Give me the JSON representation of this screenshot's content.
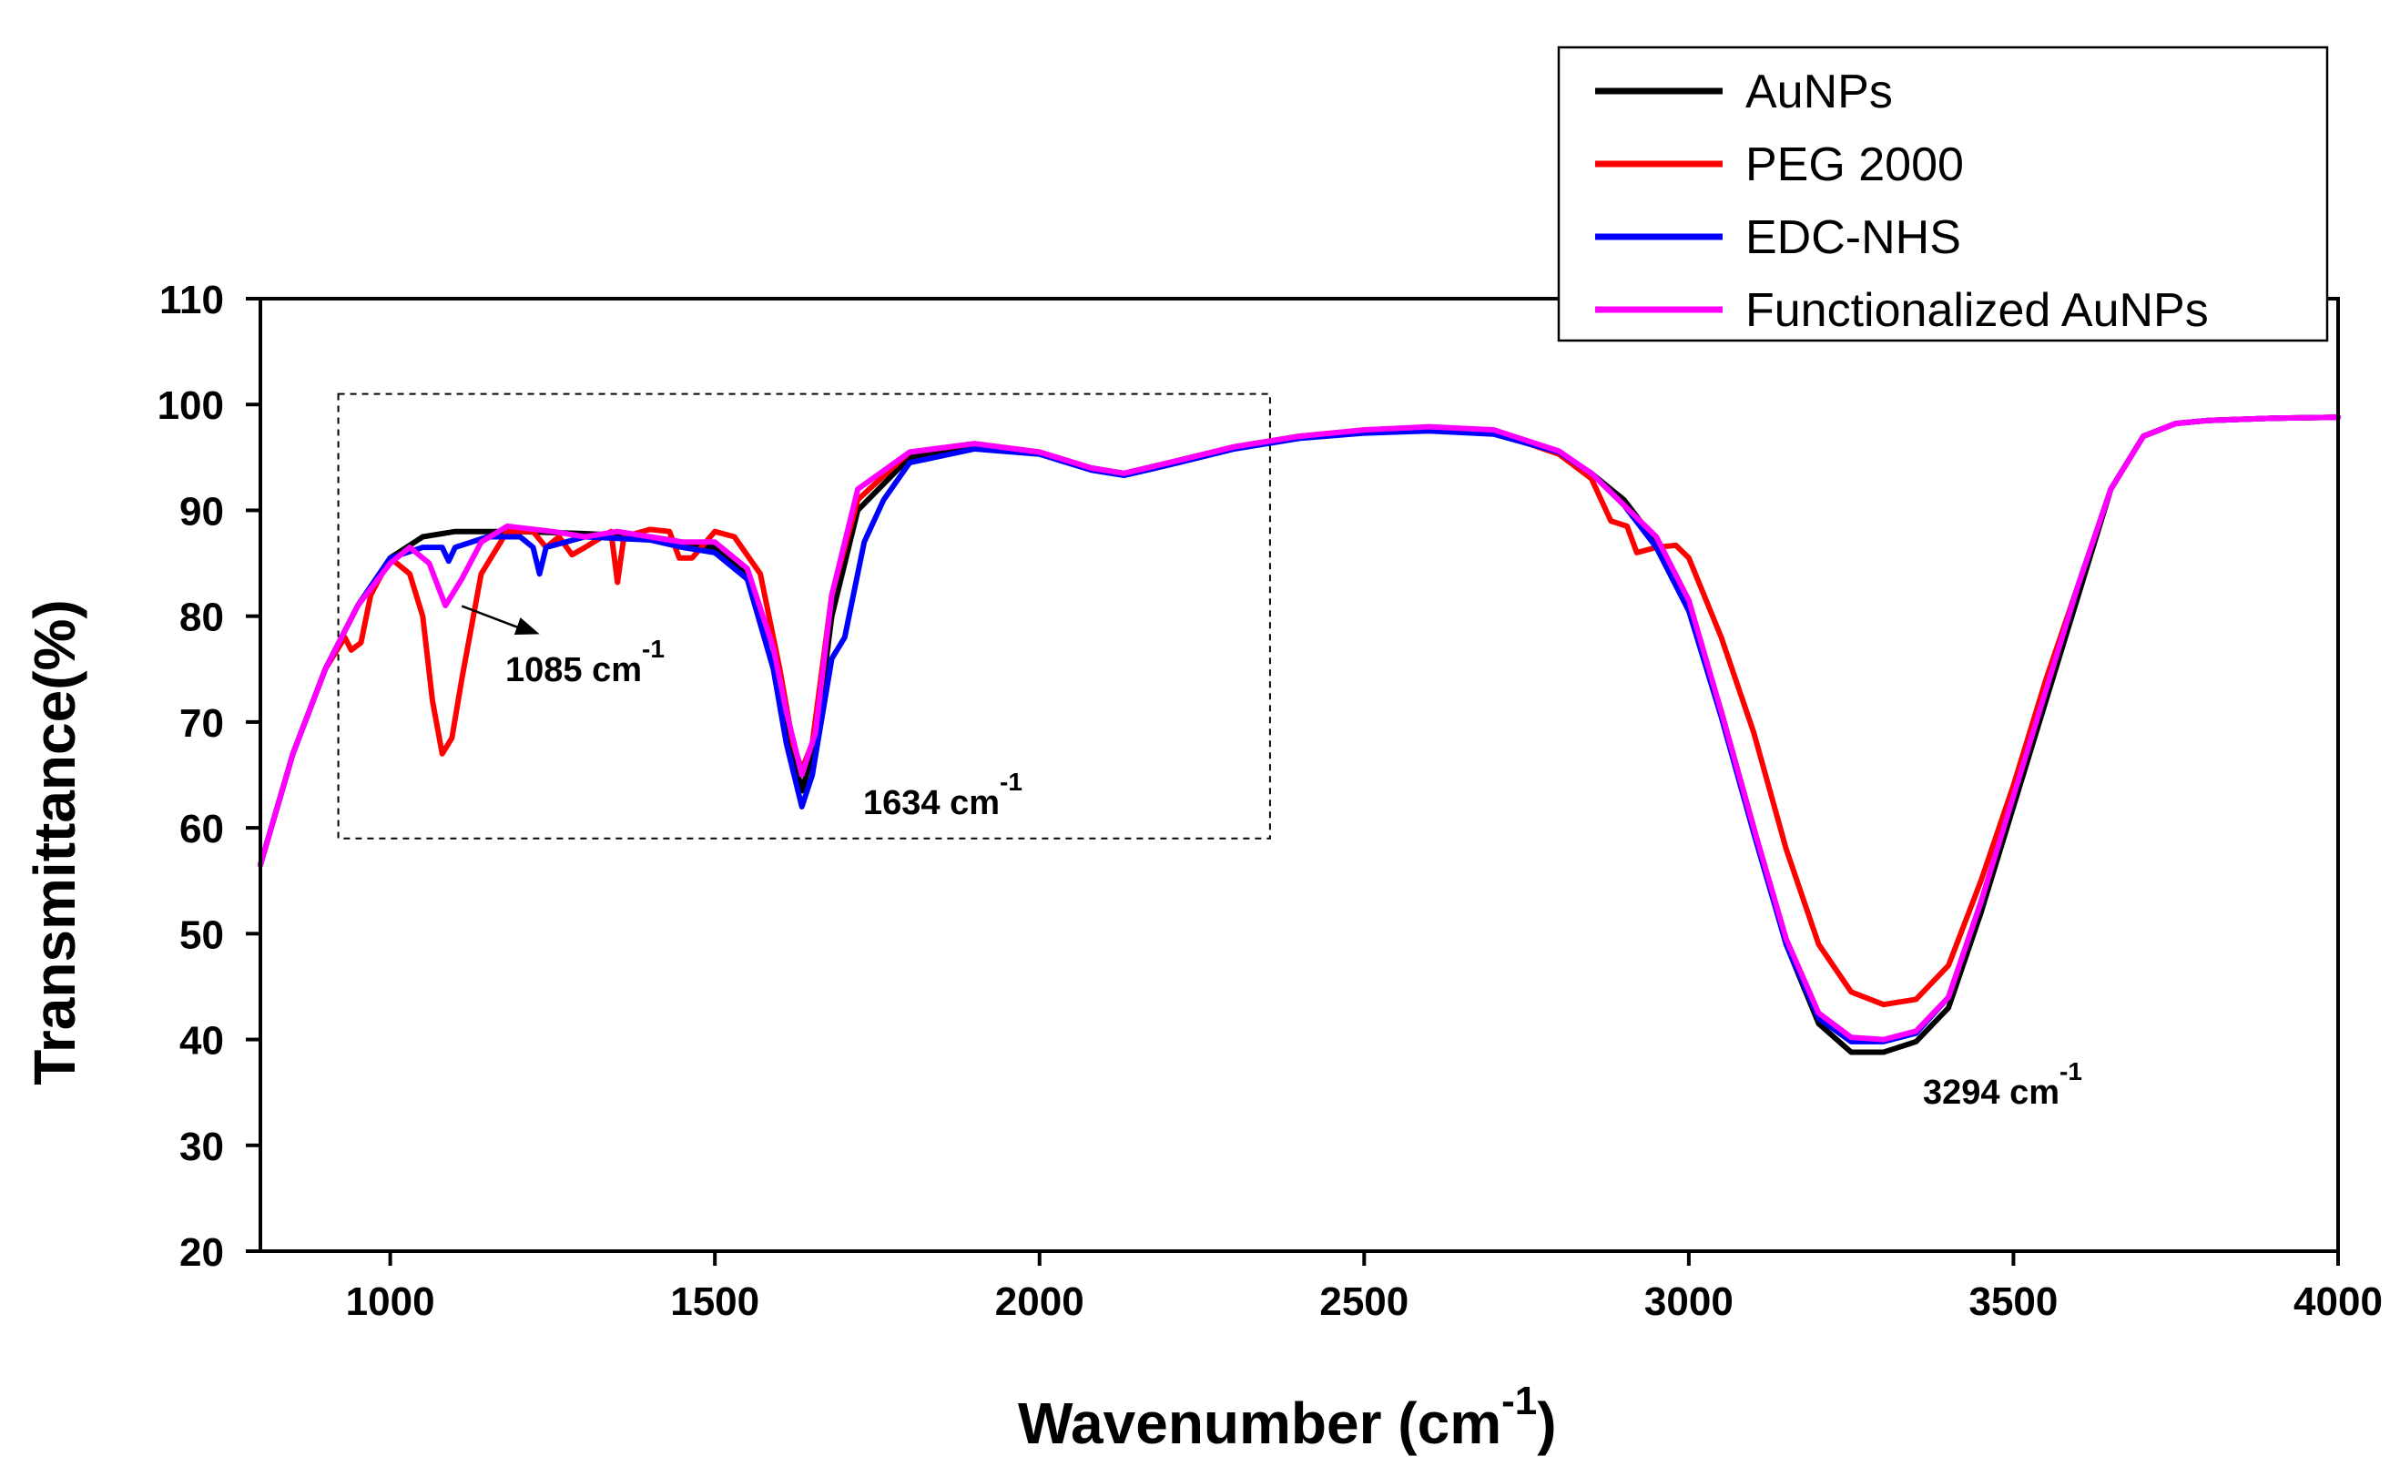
{
  "chart_data": {
    "type": "line",
    "title": "",
    "xlabel": "Wavenumber (cm",
    "xlabel_sup": "-1",
    "xlabel_close": ")",
    "ylabel": "Transmittance(%)",
    "xlim": [
      800,
      4000
    ],
    "ylim": [
      20,
      110
    ],
    "x_ticks": [
      1000,
      1500,
      2000,
      2500,
      3000,
      3500,
      4000
    ],
    "y_ticks": [
      20,
      30,
      40,
      50,
      60,
      70,
      80,
      90,
      100,
      110
    ],
    "legend_position": "top-right",
    "series": [
      {
        "name": "AuNPs",
        "color": "#000000",
        "points": [
          [
            800,
            56.5
          ],
          [
            850,
            67
          ],
          [
            900,
            75
          ],
          [
            950,
            81
          ],
          [
            1000,
            85.5
          ],
          [
            1050,
            87.5
          ],
          [
            1100,
            88
          ],
          [
            1200,
            88
          ],
          [
            1300,
            87.8
          ],
          [
            1400,
            87.5
          ],
          [
            1450,
            87
          ],
          [
            1500,
            86.5
          ],
          [
            1550,
            84
          ],
          [
            1590,
            77
          ],
          [
            1610,
            70
          ],
          [
            1634,
            63.5
          ],
          [
            1655,
            68
          ],
          [
            1680,
            80
          ],
          [
            1720,
            90
          ],
          [
            1800,
            95
          ],
          [
            1900,
            96
          ],
          [
            2000,
            95.5
          ],
          [
            2080,
            94
          ],
          [
            2130,
            93.5
          ],
          [
            2200,
            94.5
          ],
          [
            2300,
            96
          ],
          [
            2400,
            97
          ],
          [
            2500,
            97.5
          ],
          [
            2600,
            97.7
          ],
          [
            2700,
            97.5
          ],
          [
            2800,
            95.5
          ],
          [
            2850,
            93.5
          ],
          [
            2900,
            91
          ],
          [
            2950,
            87
          ],
          [
            3000,
            81
          ],
          [
            3050,
            71
          ],
          [
            3100,
            60
          ],
          [
            3150,
            49
          ],
          [
            3200,
            41.5
          ],
          [
            3250,
            38.8
          ],
          [
            3300,
            38.8
          ],
          [
            3350,
            39.8
          ],
          [
            3400,
            43
          ],
          [
            3450,
            52
          ],
          [
            3500,
            62
          ],
          [
            3550,
            72
          ],
          [
            3600,
            82
          ],
          [
            3650,
            92
          ],
          [
            3700,
            97
          ],
          [
            3750,
            98.2
          ],
          [
            3800,
            98.5
          ],
          [
            3900,
            98.7
          ],
          [
            4000,
            98.8
          ]
        ]
      },
      {
        "name": "PEG 2000",
        "color": "#ff0000",
        "points": [
          [
            800,
            56.5
          ],
          [
            850,
            67
          ],
          [
            900,
            75
          ],
          [
            930,
            78
          ],
          [
            940,
            76.8
          ],
          [
            955,
            77.5
          ],
          [
            970,
            82
          ],
          [
            1000,
            85.5
          ],
          [
            1030,
            84
          ],
          [
            1050,
            80
          ],
          [
            1065,
            72
          ],
          [
            1080,
            67
          ],
          [
            1095,
            68.5
          ],
          [
            1110,
            74
          ],
          [
            1140,
            84
          ],
          [
            1180,
            88
          ],
          [
            1220,
            88
          ],
          [
            1240,
            86.5
          ],
          [
            1260,
            87.5
          ],
          [
            1280,
            85.8
          ],
          [
            1300,
            86.5
          ],
          [
            1340,
            88
          ],
          [
            1350,
            83.2
          ],
          [
            1360,
            87.5
          ],
          [
            1400,
            88.2
          ],
          [
            1430,
            88
          ],
          [
            1445,
            85.5
          ],
          [
            1465,
            85.5
          ],
          [
            1500,
            88
          ],
          [
            1530,
            87.5
          ],
          [
            1570,
            84
          ],
          [
            1600,
            75
          ],
          [
            1620,
            68
          ],
          [
            1634,
            65.5
          ],
          [
            1650,
            68
          ],
          [
            1680,
            82
          ],
          [
            1720,
            91
          ],
          [
            1800,
            95.5
          ],
          [
            1900,
            96.3
          ],
          [
            2000,
            95.5
          ],
          [
            2080,
            94
          ],
          [
            2130,
            93.5
          ],
          [
            2200,
            94.5
          ],
          [
            2300,
            96
          ],
          [
            2400,
            97
          ],
          [
            2500,
            97.6
          ],
          [
            2600,
            97.8
          ],
          [
            2700,
            97.4
          ],
          [
            2800,
            95.3
          ],
          [
            2850,
            93
          ],
          [
            2880,
            89
          ],
          [
            2905,
            88.5
          ],
          [
            2920,
            86
          ],
          [
            2950,
            86.5
          ],
          [
            2980,
            86.7
          ],
          [
            3000,
            85.5
          ],
          [
            3050,
            78
          ],
          [
            3100,
            69
          ],
          [
            3150,
            58
          ],
          [
            3200,
            49
          ],
          [
            3250,
            44.5
          ],
          [
            3300,
            43.3
          ],
          [
            3350,
            43.8
          ],
          [
            3400,
            47
          ],
          [
            3450,
            55
          ],
          [
            3500,
            64
          ],
          [
            3550,
            74
          ],
          [
            3600,
            83
          ],
          [
            3650,
            92
          ],
          [
            3700,
            97
          ],
          [
            3750,
            98.2
          ],
          [
            3800,
            98.5
          ],
          [
            3900,
            98.7
          ],
          [
            4000,
            98.8
          ]
        ]
      },
      {
        "name": "EDC-NHS",
        "color": "#0000ff",
        "points": [
          [
            800,
            56.5
          ],
          [
            850,
            67
          ],
          [
            900,
            75
          ],
          [
            950,
            81
          ],
          [
            1000,
            85.5
          ],
          [
            1050,
            86.5
          ],
          [
            1080,
            86.5
          ],
          [
            1090,
            85.2
          ],
          [
            1100,
            86.5
          ],
          [
            1150,
            87.5
          ],
          [
            1200,
            87.5
          ],
          [
            1220,
            86.5
          ],
          [
            1230,
            84
          ],
          [
            1240,
            86.5
          ],
          [
            1300,
            87.5
          ],
          [
            1400,
            87.2
          ],
          [
            1450,
            86.5
          ],
          [
            1500,
            86
          ],
          [
            1550,
            83.5
          ],
          [
            1590,
            75
          ],
          [
            1610,
            68
          ],
          [
            1634,
            62
          ],
          [
            1650,
            65
          ],
          [
            1680,
            76
          ],
          [
            1700,
            78
          ],
          [
            1710,
            81
          ],
          [
            1730,
            87
          ],
          [
            1760,
            91
          ],
          [
            1800,
            94.5
          ],
          [
            1900,
            95.8
          ],
          [
            2000,
            95.3
          ],
          [
            2080,
            93.8
          ],
          [
            2130,
            93.3
          ],
          [
            2200,
            94.3
          ],
          [
            2300,
            95.8
          ],
          [
            2400,
            96.8
          ],
          [
            2500,
            97.3
          ],
          [
            2600,
            97.5
          ],
          [
            2700,
            97.2
          ],
          [
            2800,
            95.5
          ],
          [
            2850,
            93.5
          ],
          [
            2900,
            90.5
          ],
          [
            2950,
            86.5
          ],
          [
            3000,
            80.5
          ],
          [
            3050,
            70.5
          ],
          [
            3100,
            59.5
          ],
          [
            3150,
            49
          ],
          [
            3200,
            42
          ],
          [
            3250,
            39.8
          ],
          [
            3300,
            39.8
          ],
          [
            3350,
            40.6
          ],
          [
            3400,
            44
          ],
          [
            3450,
            53
          ],
          [
            3500,
            63
          ],
          [
            3550,
            73
          ],
          [
            3600,
            83
          ],
          [
            3650,
            92
          ],
          [
            3700,
            97
          ],
          [
            3750,
            98.2
          ],
          [
            3800,
            98.5
          ],
          [
            3900,
            98.7
          ],
          [
            4000,
            98.8
          ]
        ]
      },
      {
        "name": "Functionalized AuNPs",
        "color": "#ff00ff",
        "points": [
          [
            800,
            56.5
          ],
          [
            850,
            67
          ],
          [
            900,
            75
          ],
          [
            950,
            81
          ],
          [
            1000,
            85
          ],
          [
            1030,
            86.5
          ],
          [
            1060,
            85
          ],
          [
            1085,
            81
          ],
          [
            1110,
            83.5
          ],
          [
            1140,
            87
          ],
          [
            1180,
            88.5
          ],
          [
            1250,
            88
          ],
          [
            1300,
            87.5
          ],
          [
            1350,
            88
          ],
          [
            1400,
            87.5
          ],
          [
            1450,
            87
          ],
          [
            1500,
            87
          ],
          [
            1550,
            84.5
          ],
          [
            1590,
            77
          ],
          [
            1610,
            71
          ],
          [
            1634,
            65
          ],
          [
            1655,
            69
          ],
          [
            1680,
            82
          ],
          [
            1720,
            92
          ],
          [
            1800,
            95.5
          ],
          [
            1900,
            96.3
          ],
          [
            2000,
            95.5
          ],
          [
            2080,
            94
          ],
          [
            2130,
            93.5
          ],
          [
            2200,
            94.5
          ],
          [
            2300,
            96
          ],
          [
            2400,
            97
          ],
          [
            2500,
            97.6
          ],
          [
            2600,
            97.9
          ],
          [
            2700,
            97.6
          ],
          [
            2800,
            95.6
          ],
          [
            2850,
            93.5
          ],
          [
            2900,
            90.5
          ],
          [
            2950,
            87.5
          ],
          [
            3000,
            81.5
          ],
          [
            3050,
            71
          ],
          [
            3100,
            60
          ],
          [
            3150,
            49.5
          ],
          [
            3200,
            42.5
          ],
          [
            3250,
            40.2
          ],
          [
            3300,
            40
          ],
          [
            3350,
            40.8
          ],
          [
            3400,
            44
          ],
          [
            3450,
            53
          ],
          [
            3500,
            63
          ],
          [
            3550,
            73
          ],
          [
            3600,
            83
          ],
          [
            3650,
            92
          ],
          [
            3700,
            97
          ],
          [
            3750,
            98.2
          ],
          [
            3800,
            98.5
          ],
          [
            3900,
            98.7
          ],
          [
            4000,
            98.8
          ]
        ]
      }
    ],
    "annotations": [
      {
        "text": "1085 cm",
        "sup": "-1",
        "x": 1085,
        "y": 78,
        "arrow_from": [
          1085,
          81.3
        ],
        "arrow_to": [
          1230,
          78.3
        ]
      },
      {
        "text": "1634 cm",
        "sup": "-1",
        "x": 1634,
        "y": 60
      },
      {
        "text": "3294 cm",
        "sup": "-1",
        "x": 3294,
        "y": 35
      }
    ],
    "highlight_box": {
      "x": [
        920,
        2355
      ],
      "y": [
        59,
        101
      ]
    }
  }
}
